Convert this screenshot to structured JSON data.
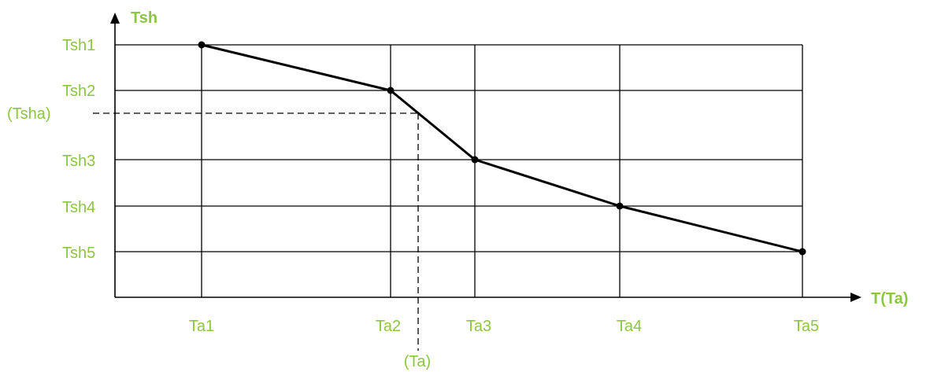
{
  "axes": {
    "y_title": "Tsh",
    "x_title": "T(Ta)"
  },
  "y_levels": [
    {
      "label": "Tsh1"
    },
    {
      "label": "Tsh2"
    },
    {
      "label": "Tsh3"
    },
    {
      "label": "Tsh4"
    },
    {
      "label": "Tsh5"
    }
  ],
  "x_levels": [
    {
      "label": "Ta1"
    },
    {
      "label": "Ta2"
    },
    {
      "label": "Ta3"
    },
    {
      "label": "Ta4"
    },
    {
      "label": "Ta5"
    }
  ],
  "interpolation": {
    "x_label": "(Ta)",
    "y_label": "(Tsha)"
  },
  "colors": {
    "label": "#8dc63f",
    "line": "#000000"
  }
}
